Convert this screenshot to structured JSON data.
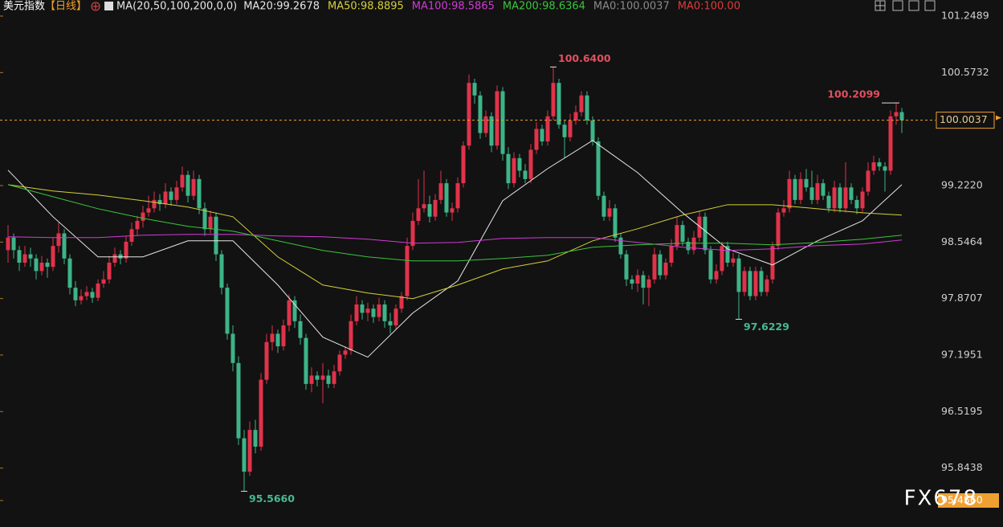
{
  "chart_data": {
    "type": "candlestick",
    "title": "美元指数",
    "period": "【日线】",
    "ma_params": "MA(20,50,100,200,0,0)",
    "up_color": "#e0334a",
    "down_color": "#3db488",
    "ylim": [
      95.456,
      101.2489
    ],
    "yticks": [
      101.2489,
      100.5732,
      {
        "value": 99.222,
        "label": "99.2220"
      },
      98.5464,
      97.8707,
      97.1951,
      96.5195,
      95.8438,
      {
        "value": 95.456,
        "label": "95.4560"
      }
    ],
    "candles": [
      [
        98.45,
        98.75,
        98.3,
        98.6
      ],
      [
        98.6,
        98.65,
        98.35,
        98.45
      ],
      [
        98.45,
        98.5,
        98.2,
        98.3
      ],
      [
        98.3,
        98.5,
        98.25,
        98.4
      ],
      [
        98.4,
        98.48,
        98.25,
        98.35
      ],
      [
        98.35,
        98.4,
        98.1,
        98.2
      ],
      [
        98.2,
        98.38,
        98.15,
        98.3
      ],
      [
        98.3,
        98.35,
        98.12,
        98.25
      ],
      [
        98.25,
        98.6,
        98.2,
        98.5
      ],
      [
        98.5,
        98.78,
        98.42,
        98.65
      ],
      [
        98.65,
        98.7,
        98.28,
        98.35
      ],
      [
        98.35,
        98.4,
        97.92,
        98.0
      ],
      [
        98.0,
        98.08,
        97.78,
        97.85
      ],
      [
        97.85,
        97.98,
        97.8,
        97.9
      ],
      [
        97.9,
        98.02,
        97.85,
        97.95
      ],
      [
        97.95,
        98.0,
        97.82,
        97.88
      ],
      [
        97.88,
        98.1,
        97.84,
        98.05
      ],
      [
        98.05,
        98.2,
        98.0,
        98.1
      ],
      [
        98.1,
        98.38,
        98.05,
        98.3
      ],
      [
        98.3,
        98.48,
        98.25,
        98.4
      ],
      [
        98.4,
        98.45,
        98.28,
        98.35
      ],
      [
        98.35,
        98.62,
        98.3,
        98.55
      ],
      [
        98.55,
        98.78,
        98.5,
        98.7
      ],
      [
        98.7,
        98.86,
        98.62,
        98.8
      ],
      [
        98.8,
        98.98,
        98.72,
        98.9
      ],
      [
        98.9,
        99.1,
        98.85,
        98.95
      ],
      [
        98.95,
        99.15,
        98.9,
        99.05
      ],
      [
        99.05,
        99.12,
        98.92,
        99.0
      ],
      [
        99.0,
        99.25,
        98.95,
        99.15
      ],
      [
        99.15,
        99.2,
        98.98,
        99.05
      ],
      [
        99.05,
        99.28,
        99.0,
        99.2
      ],
      [
        99.2,
        99.45,
        99.15,
        99.35
      ],
      [
        99.35,
        99.4,
        99.02,
        99.1
      ],
      [
        99.1,
        99.4,
        99.05,
        99.3
      ],
      [
        99.3,
        99.35,
        98.88,
        98.95
      ],
      [
        98.95,
        99.02,
        98.62,
        98.7
      ],
      [
        98.7,
        98.92,
        98.65,
        98.85
      ],
      [
        98.85,
        98.9,
        98.32,
        98.4
      ],
      [
        98.4,
        98.45,
        97.92,
        98.0
      ],
      [
        98.0,
        98.05,
        97.38,
        97.45
      ],
      [
        97.45,
        97.55,
        97.0,
        97.1
      ],
      [
        97.1,
        97.18,
        96.12,
        96.2
      ],
      [
        96.2,
        96.3,
        95.566,
        95.8
      ],
      [
        95.8,
        96.4,
        95.75,
        96.3
      ],
      [
        96.3,
        96.42,
        96.02,
        96.1
      ],
      [
        96.1,
        96.98,
        96.05,
        96.9
      ],
      [
        96.9,
        97.45,
        96.85,
        97.35
      ],
      [
        97.35,
        97.55,
        97.25,
        97.45
      ],
      [
        97.45,
        97.5,
        97.22,
        97.3
      ],
      [
        97.3,
        97.62,
        97.25,
        97.55
      ],
      [
        97.55,
        97.92,
        97.48,
        97.85
      ],
      [
        97.85,
        97.9,
        97.52,
        97.6
      ],
      [
        97.6,
        97.68,
        97.32,
        97.4
      ],
      [
        97.4,
        97.45,
        96.78,
        96.85
      ],
      [
        96.85,
        97.05,
        96.75,
        96.95
      ],
      [
        96.95,
        97.0,
        96.82,
        96.9
      ],
      [
        96.9,
        97.1,
        96.62,
        96.95
      ],
      [
        96.95,
        97.02,
        96.8,
        96.85
      ],
      [
        96.85,
        97.08,
        96.8,
        97.0
      ],
      [
        97.0,
        97.25,
        96.95,
        97.2
      ],
      [
        97.2,
        97.3,
        97.15,
        97.25
      ],
      [
        97.25,
        97.68,
        97.2,
        97.6
      ],
      [
        97.6,
        97.9,
        97.55,
        97.8
      ],
      [
        97.8,
        97.85,
        97.62,
        97.7
      ],
      [
        97.7,
        97.82,
        97.6,
        97.75
      ],
      [
        97.75,
        97.8,
        97.58,
        97.65
      ],
      [
        97.65,
        97.88,
        97.6,
        97.8
      ],
      [
        97.8,
        97.85,
        97.52,
        97.6
      ],
      [
        97.6,
        97.7,
        97.45,
        97.55
      ],
      [
        97.55,
        97.8,
        97.5,
        97.75
      ],
      [
        97.75,
        97.95,
        97.7,
        97.9
      ],
      [
        97.9,
        98.6,
        97.85,
        98.5
      ],
      [
        98.5,
        98.9,
        98.45,
        98.8
      ],
      [
        98.8,
        99.3,
        98.75,
        98.95
      ],
      [
        98.95,
        99.4,
        98.9,
        99.0
      ],
      [
        99.0,
        99.1,
        98.78,
        98.85
      ],
      [
        98.85,
        99.12,
        98.8,
        99.05
      ],
      [
        99.05,
        99.4,
        99.0,
        99.25
      ],
      [
        99.25,
        99.3,
        98.85,
        98.9
      ],
      [
        98.9,
        99.02,
        98.8,
        98.95
      ],
      [
        98.95,
        99.32,
        98.9,
        99.25
      ],
      [
        99.25,
        99.75,
        99.2,
        99.7
      ],
      [
        99.7,
        100.55,
        99.65,
        100.45
      ],
      [
        100.45,
        100.5,
        100.2,
        100.3
      ],
      [
        100.3,
        100.35,
        99.78,
        99.85
      ],
      [
        99.85,
        100.12,
        99.8,
        100.05
      ],
      [
        100.05,
        100.1,
        99.62,
        99.7
      ],
      [
        99.7,
        100.42,
        99.65,
        100.35
      ],
      [
        100.35,
        100.4,
        99.52,
        99.6
      ],
      [
        99.6,
        99.68,
        99.18,
        99.25
      ],
      [
        99.25,
        99.62,
        99.2,
        99.55
      ],
      [
        99.55,
        99.6,
        99.32,
        99.4
      ],
      [
        99.4,
        99.48,
        99.25,
        99.3
      ],
      [
        99.3,
        99.72,
        99.25,
        99.65
      ],
      [
        99.65,
        99.98,
        99.6,
        99.9
      ],
      [
        99.9,
        99.95,
        99.7,
        99.75
      ],
      [
        99.75,
        100.12,
        99.7,
        100.05
      ],
      [
        100.05,
        100.64,
        100.0,
        100.45
      ],
      [
        100.45,
        100.5,
        99.9,
        99.95
      ],
      [
        99.95,
        100.0,
        99.55,
        99.8
      ],
      [
        99.8,
        100.08,
        99.75,
        100.0
      ],
      [
        100.0,
        100.18,
        99.95,
        100.1
      ],
      [
        100.1,
        100.35,
        100.05,
        100.3
      ],
      [
        100.3,
        100.35,
        99.95,
        100.0
      ],
      [
        100.0,
        100.05,
        99.7,
        99.75
      ],
      [
        99.75,
        99.8,
        99.05,
        99.1
      ],
      [
        99.1,
        99.15,
        98.8,
        98.85
      ],
      [
        98.85,
        99.05,
        98.8,
        98.95
      ],
      [
        98.95,
        99.0,
        98.55,
        98.6
      ],
      [
        98.6,
        98.65,
        98.35,
        98.4
      ],
      [
        98.4,
        98.45,
        98.02,
        98.1
      ],
      [
        98.1,
        98.15,
        97.98,
        98.05
      ],
      [
        98.05,
        98.22,
        97.95,
        98.15
      ],
      [
        98.15,
        98.2,
        97.8,
        98.0
      ],
      [
        98.0,
        98.15,
        97.78,
        98.1
      ],
      [
        98.1,
        98.48,
        98.05,
        98.4
      ],
      [
        98.4,
        98.45,
        98.1,
        98.15
      ],
      [
        98.15,
        98.35,
        98.1,
        98.3
      ],
      [
        98.3,
        98.58,
        98.25,
        98.5
      ],
      [
        98.5,
        98.85,
        98.45,
        98.75
      ],
      [
        98.75,
        98.8,
        98.5,
        98.55
      ],
      [
        98.55,
        98.6,
        98.4,
        98.45
      ],
      [
        98.45,
        98.68,
        98.4,
        98.6
      ],
      [
        98.6,
        98.92,
        98.55,
        98.85
      ],
      [
        98.85,
        98.9,
        98.4,
        98.45
      ],
      [
        98.45,
        98.5,
        98.05,
        98.1
      ],
      [
        98.1,
        98.28,
        98.05,
        98.2
      ],
      [
        98.2,
        98.55,
        98.15,
        98.5
      ],
      [
        98.5,
        98.55,
        98.25,
        98.3
      ],
      [
        98.3,
        98.42,
        98.25,
        98.35
      ],
      [
        98.35,
        98.4,
        97.6229,
        97.95
      ],
      [
        97.95,
        98.25,
        97.9,
        98.2
      ],
      [
        98.2,
        98.25,
        97.85,
        97.9
      ],
      [
        97.9,
        98.25,
        97.85,
        98.2
      ],
      [
        98.2,
        98.25,
        97.9,
        97.95
      ],
      [
        97.95,
        98.15,
        97.9,
        98.1
      ],
      [
        98.1,
        98.55,
        98.05,
        98.5
      ],
      [
        98.5,
        98.95,
        98.45,
        98.9
      ],
      [
        98.9,
        99.05,
        98.85,
        98.95
      ],
      [
        98.95,
        99.4,
        98.9,
        99.3
      ],
      [
        99.3,
        99.35,
        99.0,
        99.05
      ],
      [
        99.05,
        99.38,
        99.0,
        99.3
      ],
      [
        99.3,
        99.42,
        99.15,
        99.2
      ],
      [
        99.2,
        99.4,
        99.0,
        99.05
      ],
      [
        99.05,
        99.35,
        99.0,
        99.25
      ],
      [
        99.25,
        99.3,
        99.05,
        99.1
      ],
      [
        99.1,
        99.15,
        98.9,
        98.95
      ],
      [
        98.95,
        99.28,
        98.9,
        99.2
      ],
      [
        99.2,
        99.25,
        98.9,
        98.95
      ],
      [
        98.95,
        99.5,
        98.9,
        99.2
      ],
      [
        99.2,
        99.25,
        99.0,
        99.05
      ],
      [
        99.05,
        99.1,
        98.88,
        98.95
      ],
      [
        98.95,
        99.2,
        98.9,
        99.15
      ],
      [
        99.15,
        99.5,
        99.1,
        99.4
      ],
      [
        99.4,
        99.58,
        99.35,
        99.5
      ],
      [
        99.5,
        99.55,
        99.4,
        99.45
      ],
      [
        99.45,
        99.5,
        99.15,
        99.4
      ],
      [
        99.4,
        100.12,
        99.35,
        100.05
      ],
      [
        100.05,
        100.2099,
        99.95,
        100.1
      ],
      [
        100.1,
        100.15,
        99.85,
        100.0037
      ]
    ],
    "ma_x": [
      0,
      8,
      16,
      24,
      32,
      40,
      48,
      56,
      64,
      72,
      80,
      88,
      96,
      104,
      112,
      120,
      128,
      136,
      144,
      152,
      159
    ],
    "series": [
      {
        "name": "MA20:99.2678",
        "color": "#e6e6e6",
        "values": [
          99.406,
          98.849,
          98.369,
          98.369,
          98.561,
          98.561,
          98.033,
          97.409,
          97.17,
          97.698,
          98.082,
          99.041,
          99.425,
          99.761,
          99.377,
          98.897,
          98.465,
          98.273,
          98.561,
          98.801,
          99.233
        ]
      },
      {
        "name": "MA50:98.8895",
        "color": "#d6cf3a",
        "values": [
          99.233,
          99.157,
          99.109,
          99.041,
          98.965,
          98.849,
          98.369,
          98.033,
          97.937,
          97.87,
          98.033,
          98.225,
          98.321,
          98.561,
          98.705,
          98.869,
          98.993,
          98.993,
          98.945,
          98.897,
          98.869
        ]
      },
      {
        "name": "MA100:98.5865",
        "color": "#d23bd6",
        "values": [
          98.61,
          98.6,
          98.6,
          98.629,
          98.638,
          98.638,
          98.619,
          98.61,
          98.581,
          98.533,
          98.542,
          98.59,
          98.6,
          98.6,
          98.542,
          98.485,
          98.446,
          98.465,
          98.504,
          98.523,
          98.571
        ]
      },
      {
        "name": "MA200:98.6364",
        "color": "#3cc43c",
        "values": [
          99.233,
          99.089,
          98.945,
          98.83,
          98.734,
          98.677,
          98.561,
          98.446,
          98.369,
          98.321,
          98.321,
          98.35,
          98.389,
          98.485,
          98.513,
          98.533,
          98.533,
          98.513,
          98.542,
          98.581,
          98.629
        ]
      }
    ],
    "indicators": [
      {
        "name": "MA0:100.0037",
        "color": "#8a8a8a"
      },
      {
        "name": "MA0:100.00",
        "color": "#e03a3a"
      }
    ],
    "annotations": [
      {
        "value": 100.64,
        "label": "100.6400",
        "color": "#e0505f"
      },
      {
        "value": 100.2099,
        "label": "100.2099",
        "color": "#e0505f"
      },
      {
        "value": 97.6229,
        "label": "97.6229",
        "color": "#48b98f"
      },
      {
        "value": 95.566,
        "label": "95.5660",
        "color": "#48b98f"
      }
    ],
    "price_line_color": "#f0a030",
    "watermark": "FX678"
  }
}
